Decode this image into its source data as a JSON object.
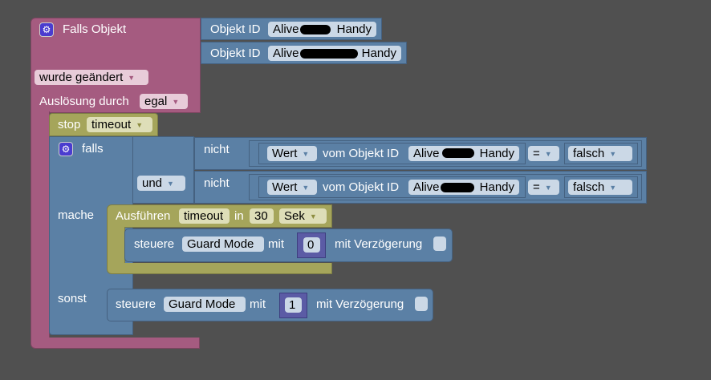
{
  "trigger": {
    "title": "Falls Objekt",
    "objects": [
      {
        "label": "Objekt ID",
        "value_start": "Alive",
        "value_end": "Handy"
      },
      {
        "label": "Objekt ID",
        "value_start": "Alive",
        "value_end": "Handy"
      }
    ],
    "change": "wurde geändert",
    "trigger_by_label": "Auslösung durch",
    "trigger_by": "egal"
  },
  "stop": {
    "label": "stop",
    "timer": "timeout"
  },
  "if": {
    "label": "falls",
    "and": "und",
    "do": "mache",
    "else": "sonst",
    "conditions": [
      {
        "not": "nicht",
        "prop": "Wert",
        "of": "vom Objekt ID",
        "obj_start": "Alive",
        "obj_end": "Handy",
        "op": "=",
        "value": "falsch"
      },
      {
        "not": "nicht",
        "prop": "Wert",
        "of": "vom Objekt ID",
        "obj_start": "Alive",
        "obj_end": "Handy",
        "op": "=",
        "value": "falsch"
      }
    ]
  },
  "timeout": {
    "label": "Ausführen",
    "name": "timeout",
    "in": "in",
    "value": "30",
    "unit": "Sek"
  },
  "control1": {
    "label": "steuere",
    "target": "Guard Mode",
    "with": "mit",
    "value": "0",
    "delay": "mit Verzögerung"
  },
  "control2": {
    "label": "steuere",
    "target": "Guard Mode",
    "with": "mit",
    "value": "1",
    "delay": "mit Verzögerung"
  },
  "colors": {
    "trigger": "#a55b80",
    "logic": "#5b80a5",
    "timer": "#a5a55b",
    "number": "#5b5ba5",
    "background": "#505050"
  }
}
